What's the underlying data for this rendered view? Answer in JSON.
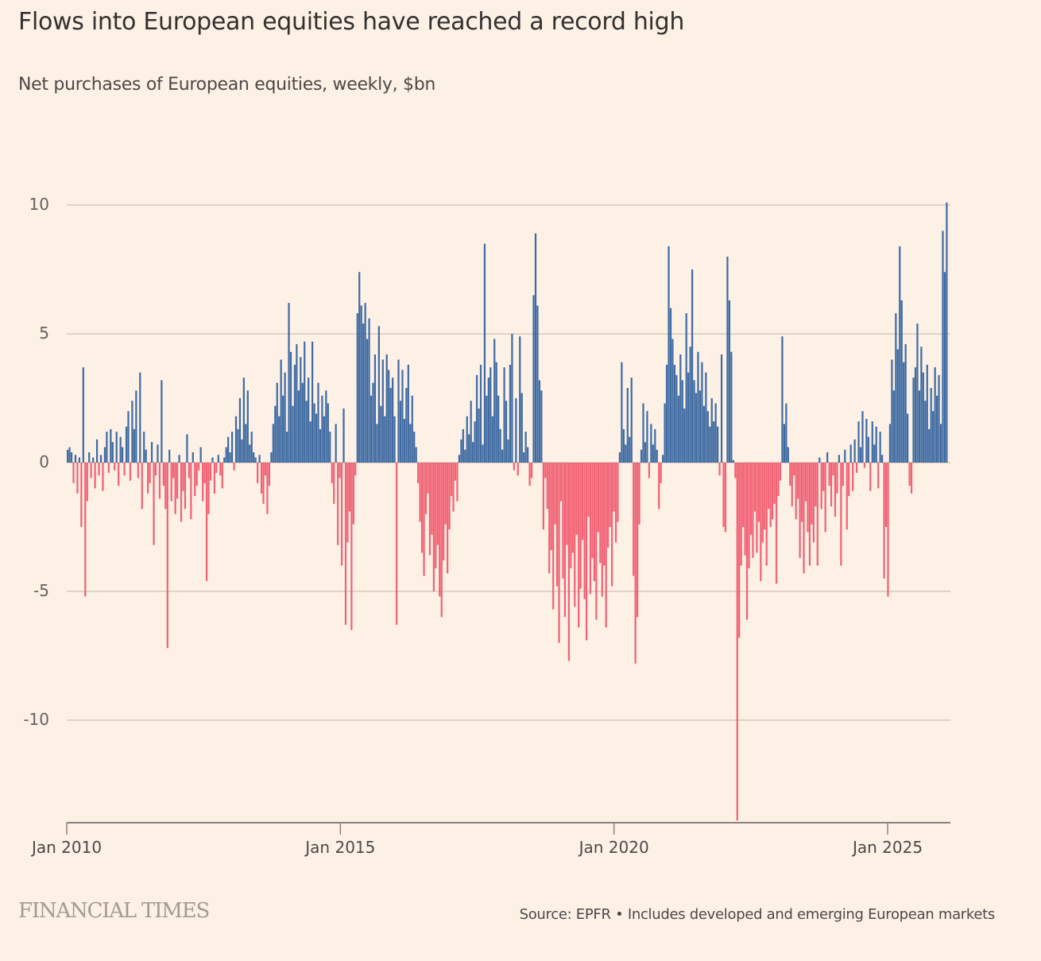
{
  "header": {
    "title": "Flows into European equities have reached a record high",
    "subtitle": "Net purchases of European equities, weekly, $bn"
  },
  "footer": {
    "logo": "FINANCIAL TIMES",
    "source": "Source: EPFR • Includes developed and emerging European markets"
  },
  "colors": {
    "positive": "#2f5f9c",
    "negative": "#f0566a",
    "grid": "#ccc1b7",
    "axis": "#8a827b",
    "background": "#fdf1e6"
  },
  "chart_data": {
    "type": "bar",
    "title": "Flows into European equities have reached a record high",
    "subtitle": "Net purchases of European equities, weekly, $bn",
    "xlabel": "",
    "ylabel": "$bn",
    "x_start": 2010.0,
    "x_end": 2026.1,
    "ylim": [
      -14,
      10
    ],
    "grid": true,
    "y_ticks": [
      {
        "value": 10,
        "label": "10"
      },
      {
        "value": 5,
        "label": "5"
      },
      {
        "value": 0,
        "label": "0"
      },
      {
        "value": -5,
        "label": "-5"
      },
      {
        "value": -10,
        "label": "-10"
      }
    ],
    "x_ticks": [
      {
        "value": 2010,
        "label": "Jan 2010"
      },
      {
        "value": 2015,
        "label": "Jan 2015"
      },
      {
        "value": 2020,
        "label": "Jan 2020"
      },
      {
        "value": 2025,
        "label": "Jan 2025"
      }
    ],
    "sampling": "approx. biweekly, first value at Jan 2010",
    "values": [
      0.5,
      0.6,
      0.4,
      -0.8,
      0.3,
      -1.2,
      0.2,
      -2.5,
      3.7,
      -5.2,
      -1.5,
      0.4,
      -0.6,
      0.2,
      -1.0,
      0.9,
      -0.5,
      0.3,
      -1.1,
      0.6,
      1.2,
      -0.4,
      1.3,
      0.8,
      -0.3,
      1.2,
      -0.9,
      1.0,
      0.6,
      -0.5,
      1.4,
      2.0,
      -0.7,
      2.4,
      1.3,
      2.8,
      -0.6,
      3.5,
      -1.8,
      1.2,
      0.5,
      -1.2,
      -0.8,
      0.8,
      -3.2,
      -0.5,
      0.7,
      -1.4,
      3.2,
      -0.9,
      -1.8,
      -7.2,
      0.5,
      -1.5,
      -0.6,
      -2.0,
      -1.4,
      0.3,
      -2.3,
      -1.1,
      -1.8,
      1.1,
      -0.6,
      -2.2,
      0.4,
      -1.3,
      -0.9,
      -0.3,
      0.6,
      -1.5,
      -0.8,
      -4.6,
      -2.0,
      -0.7,
      0.2,
      -1.2,
      -0.4,
      0.3,
      -0.5,
      -1.0,
      0.2,
      0.6,
      1.0,
      0.4,
      1.2,
      -0.3,
      1.8,
      1.3,
      2.5,
      0.9,
      3.3,
      1.5,
      2.8,
      0.7,
      1.2,
      0.4,
      0.2,
      -0.8,
      0.3,
      -1.2,
      -1.6,
      -0.5,
      -2.0,
      -0.9,
      0.4,
      1.5,
      2.2,
      3.1,
      1.8,
      4.0,
      2.6,
      3.5,
      1.2,
      6.2,
      4.3,
      2.2,
      3.8,
      4.6,
      2.8,
      4.1,
      3.1,
      4.7,
      2.4,
      3.3,
      1.6,
      4.7,
      2.3,
      1.9,
      3.1,
      1.3,
      2.6,
      1.8,
      2.8,
      2.3,
      1.2,
      -0.8,
      -1.6,
      1.5,
      -3.2,
      -0.6,
      -4.0,
      2.1,
      -6.3,
      -3.1,
      -1.9,
      -6.5,
      -2.4,
      -0.5,
      5.8,
      7.4,
      6.1,
      5.4,
      6.2,
      4.8,
      5.6,
      2.6,
      3.1,
      4.2,
      1.5,
      5.3,
      2.2,
      4.0,
      1.8,
      4.2,
      3.6,
      2.9,
      3.3,
      1.8,
      -6.3,
      4.0,
      2.4,
      3.6,
      1.7,
      2.9,
      3.8,
      1.5,
      2.6,
      1.2,
      0.6,
      -0.8,
      -2.3,
      -3.5,
      -4.4,
      -2.0,
      -1.2,
      -3.6,
      -2.8,
      -5.0,
      -4.1,
      -3.2,
      -5.2,
      -6.0,
      -3.8,
      -2.4,
      -4.3,
      -2.6,
      -1.3,
      -1.9,
      -0.7,
      -1.5,
      0.3,
      0.9,
      1.3,
      0.5,
      1.8,
      1.1,
      2.4,
      0.8,
      1.6,
      3.4,
      2.1,
      3.8,
      0.7,
      8.5,
      2.6,
      3.3,
      3.7,
      1.8,
      4.8,
      3.9,
      2.6,
      1.3,
      0.5,
      3.7,
      2.4,
      0.9,
      3.8,
      5.0,
      -0.3,
      2.5,
      -0.5,
      4.9,
      2.7,
      0.4,
      1.2,
      0.6,
      -0.9,
      -0.6,
      6.5,
      8.9,
      6.1,
      3.2,
      2.8,
      -2.6,
      -0.6,
      -1.8,
      -4.3,
      -3.4,
      -5.7,
      -2.4,
      -4.8,
      -7.0,
      -1.5,
      -4.5,
      -6.0,
      -3.2,
      -7.7,
      -4.1,
      -3.5,
      -5.6,
      -2.8,
      -6.4,
      -4.9,
      -3.0,
      -5.3,
      -6.9,
      -2.1,
      -5.1,
      -3.7,
      -4.6,
      -6.1,
      -2.7,
      -3.9,
      -5.2,
      -4.0,
      -6.4,
      -3.3,
      -2.5,
      -4.8,
      -1.9,
      -3.1,
      -2.3,
      0.4,
      3.9,
      1.3,
      0.7,
      2.9,
      1.0,
      3.3,
      -4.4,
      -7.8,
      -6.0,
      -2.4,
      0.5,
      2.3,
      0.8,
      2.0,
      -0.6,
      1.5,
      0.7,
      1.3,
      0.5,
      -1.8,
      -0.8,
      0.3,
      2.3,
      3.8,
      8.4,
      6.0,
      4.8,
      3.8,
      3.4,
      2.6,
      4.2,
      3.2,
      2.1,
      5.8,
      3.5,
      4.5,
      7.5,
      3.2,
      2.7,
      4.3,
      2.8,
      3.9,
      2.2,
      3.5,
      2.0,
      1.4,
      2.5,
      1.6,
      2.3,
      1.4,
      -0.5,
      4.2,
      -2.5,
      -2.7,
      8.0,
      6.3,
      4.3,
      0.1,
      -0.6,
      -13.9,
      -6.8,
      -4.0,
      -2.5,
      -3.6,
      -6.1,
      -4.1,
      -2.8,
      -3.7,
      -1.9,
      -3.5,
      -2.3,
      -4.6,
      -3.1,
      -2.6,
      -4.0,
      -1.8,
      -2.5,
      -2.2,
      -1.6,
      -4.7,
      -1.3,
      -0.7,
      4.9,
      1.5,
      2.3,
      0.6,
      -0.9,
      -1.7,
      -0.5,
      -2.2,
      -1.4,
      -3.7,
      -2.3,
      -4.3,
      -1.5,
      -2.7,
      -4.0,
      -2.4,
      -3.1,
      -1.7,
      -4.0,
      0.2,
      -1.8,
      -1.1,
      -2.7,
      0.4,
      -0.9,
      -1.7,
      -0.5,
      -2.1,
      -1.2,
      0.3,
      -4.0,
      -0.9,
      0.5,
      -2.6,
      -1.3,
      0.7,
      -1.1,
      0.9,
      -0.4,
      1.6,
      0.6,
      2.0,
      -0.2,
      1.7,
      1.0,
      -1.1,
      1.6,
      0.7,
      1.4,
      -1.0,
      1.2,
      0.3,
      -4.5,
      -2.5,
      -5.2,
      1.5,
      4.0,
      2.8,
      5.8,
      4.4,
      8.4,
      6.3,
      3.9,
      4.6,
      1.9,
      -0.9,
      -1.2,
      3.3,
      3.7,
      5.4,
      2.8,
      4.5,
      3.5,
      2.4,
      3.8,
      1.3,
      2.9,
      2.0,
      3.7,
      2.6,
      3.4,
      1.5,
      9.0,
      7.4,
      10.1
    ]
  }
}
